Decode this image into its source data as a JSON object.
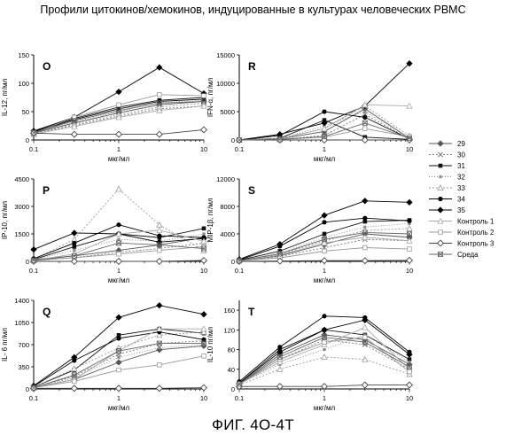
{
  "title": "Профили цитокинов/хемокинов, индуцированные в культурах человеческих PBMC",
  "caption": "ФИГ. 4О-4Т",
  "legend": {
    "placement": "right",
    "entries": [
      {
        "name": "29",
        "color": "#555555",
        "marker": "diamond-filled",
        "dash": ""
      },
      {
        "name": "30",
        "color": "#777777",
        "marker": "x",
        "dash": "2,2"
      },
      {
        "name": "31",
        "color": "#111111",
        "marker": "square-filled",
        "dash": ""
      },
      {
        "name": "32",
        "color": "#888888",
        "marker": "square-small",
        "dash": "1,2"
      },
      {
        "name": "33",
        "color": "#999999",
        "marker": "triangle-open",
        "dash": "2,2"
      },
      {
        "name": "34",
        "color": "#000000",
        "marker": "circle-filled",
        "dash": ""
      },
      {
        "name": "35",
        "color": "#000000",
        "marker": "diamond-filled",
        "dash": ""
      },
      {
        "name": "Контроль 1",
        "color": "#aaaaaa",
        "marker": "triangle-open",
        "dash": ""
      },
      {
        "name": "Контроль 2",
        "color": "#999999",
        "marker": "square-open",
        "dash": ""
      },
      {
        "name": "Контроль 3",
        "color": "#444444",
        "marker": "diamond-open",
        "dash": ""
      },
      {
        "name": "Среда",
        "color": "#666666",
        "marker": "x-box",
        "dash": ""
      }
    ]
  },
  "chart_data": [
    {
      "type": "line",
      "panel": "O",
      "ylabel": "IL-12, пг/мл",
      "xlabel": "мкг/мл",
      "x_scale": "log",
      "xlim": [
        0.1,
        10
      ],
      "x_ticks": [
        0.1,
        1,
        10
      ],
      "ylim": [
        0,
        150
      ],
      "y_ticks": [
        0,
        50,
        100,
        150
      ],
      "grid": false,
      "x": [
        0.1,
        0.3,
        1,
        3,
        10
      ],
      "series": [
        {
          "name": "29",
          "values": [
            12,
            30,
            48,
            62,
            68
          ]
        },
        {
          "name": "30",
          "values": [
            10,
            26,
            42,
            55,
            60
          ]
        },
        {
          "name": "31",
          "values": [
            15,
            38,
            58,
            70,
            75
          ]
        },
        {
          "name": "32",
          "values": [
            12,
            32,
            50,
            66,
            70
          ]
        },
        {
          "name": "33",
          "values": [
            11,
            28,
            45,
            58,
            65
          ]
        },
        {
          "name": "34",
          "values": [
            14,
            36,
            55,
            68,
            72
          ]
        },
        {
          "name": "35",
          "values": [
            16,
            40,
            85,
            128,
            82
          ]
        },
        {
          "name": "Контроль 1",
          "values": [
            10,
            24,
            40,
            52,
            60
          ]
        },
        {
          "name": "Контроль 2",
          "values": [
            12,
            40,
            62,
            80,
            78
          ]
        },
        {
          "name": "Контроль 3",
          "values": [
            12,
            10,
            10,
            10,
            18
          ]
        },
        {
          "name": "Среда",
          "values": [
            13,
            34,
            52,
            65,
            68
          ]
        }
      ]
    },
    {
      "type": "line",
      "panel": "R",
      "ylabel": "IFN-α, пг/мл",
      "xlabel": "мкг/мл",
      "x_scale": "log",
      "xlim": [
        0.1,
        10
      ],
      "x_ticks": [
        0.1,
        1,
        10
      ],
      "ylim": [
        0,
        15000
      ],
      "y_ticks": [
        0,
        5000,
        10000,
        15000
      ],
      "grid": false,
      "x": [
        0.1,
        0.3,
        1,
        3,
        10
      ],
      "series": [
        {
          "name": "29",
          "values": [
            0,
            200,
            1500,
            5500,
            300
          ]
        },
        {
          "name": "30",
          "values": [
            0,
            100,
            800,
            4500,
            200
          ]
        },
        {
          "name": "31",
          "values": [
            0,
            300,
            3500,
            500,
            100
          ]
        },
        {
          "name": "32",
          "values": [
            0,
            200,
            2500,
            5000,
            400
          ]
        },
        {
          "name": "33",
          "values": [
            0,
            300,
            2000,
            6000,
            700
          ]
        },
        {
          "name": "34",
          "values": [
            0,
            800,
            5000,
            4000,
            200
          ]
        },
        {
          "name": "35",
          "values": [
            0,
            1000,
            3000,
            6000,
            13500
          ]
        },
        {
          "name": "Контроль 1",
          "values": [
            0,
            200,
            2000,
            6200,
            6000
          ]
        },
        {
          "name": "Контроль 2",
          "values": [
            0,
            100,
            500,
            2000,
            600
          ]
        },
        {
          "name": "Контроль 3",
          "values": [
            0,
            0,
            0,
            0,
            0
          ]
        },
        {
          "name": "Среда",
          "values": [
            0,
            100,
            600,
            3000,
            300
          ]
        }
      ]
    },
    {
      "type": "line",
      "panel": "P",
      "ylabel": "IP-10, пг/мл",
      "xlabel": "мкг/мл",
      "x_scale": "log",
      "xlim": [
        0.1,
        10
      ],
      "x_ticks": [
        0.1,
        1,
        10
      ],
      "ylim": [
        0,
        4500
      ],
      "y_ticks": [
        0,
        1500,
        3000,
        4500
      ],
      "grid": false,
      "x": [
        0.1,
        0.3,
        1,
        3,
        10
      ],
      "series": [
        {
          "name": "29",
          "values": [
            100,
            300,
            600,
            900,
            1300
          ]
        },
        {
          "name": "30",
          "values": [
            50,
            200,
            500,
            700,
            1000
          ]
        },
        {
          "name": "31",
          "values": [
            100,
            800,
            1500,
            1300,
            1800
          ]
        },
        {
          "name": "32",
          "values": [
            100,
            600,
            1200,
            1100,
            1500
          ]
        },
        {
          "name": "33",
          "values": [
            100,
            1200,
            3950,
            2000,
            600
          ]
        },
        {
          "name": "34",
          "values": [
            150,
            1000,
            2000,
            1400,
            1300
          ]
        },
        {
          "name": "35",
          "values": [
            650,
            1550,
            1500,
            1050,
            1250
          ]
        },
        {
          "name": "Контроль 1",
          "values": [
            50,
            400,
            1500,
            1700,
            1100
          ]
        },
        {
          "name": "Контроль 2",
          "values": [
            50,
            200,
            400,
            600,
            800
          ]
        },
        {
          "name": "Контроль 3",
          "values": [
            0,
            0,
            0,
            0,
            50
          ]
        },
        {
          "name": "Среда",
          "values": [
            50,
            300,
            1000,
            900,
            700
          ]
        }
      ]
    },
    {
      "type": "line",
      "panel": "S",
      "ylabel": "MIP-1β, пг/мл",
      "xlabel": "мкг/мл",
      "x_scale": "log",
      "xlim": [
        0.1,
        10
      ],
      "x_ticks": [
        0.1,
        1,
        10
      ],
      "ylim": [
        0,
        12000
      ],
      "y_ticks": [
        0,
        4000,
        8000,
        12000
      ],
      "grid": false,
      "x": [
        0.1,
        0.3,
        1,
        3,
        10
      ],
      "series": [
        {
          "name": "29",
          "values": [
            100,
            800,
            2500,
            4000,
            3500
          ]
        },
        {
          "name": "30",
          "values": [
            100,
            700,
            2000,
            3200,
            3000
          ]
        },
        {
          "name": "31",
          "values": [
            150,
            1500,
            4000,
            5800,
            6000
          ]
        },
        {
          "name": "32",
          "values": [
            100,
            1200,
            3500,
            5000,
            5500
          ]
        },
        {
          "name": "33",
          "values": [
            100,
            1000,
            3000,
            4500,
            4800
          ]
        },
        {
          "name": "34",
          "values": [
            200,
            2200,
            5700,
            6300,
            5900
          ]
        },
        {
          "name": "35",
          "values": [
            300,
            2500,
            6700,
            8800,
            8600
          ]
        },
        {
          "name": "Контроль 1",
          "values": [
            100,
            900,
            2700,
            3500,
            3000
          ]
        },
        {
          "name": "Контроль 2",
          "values": [
            100,
            500,
            1500,
            2000,
            1800
          ]
        },
        {
          "name": "Контроль 3",
          "values": [
            0,
            50,
            100,
            100,
            150
          ]
        },
        {
          "name": "Среда",
          "values": [
            100,
            1100,
            3200,
            4200,
            4000
          ]
        }
      ]
    },
    {
      "type": "line",
      "panel": "Q",
      "ylabel": "IL- 6 пг/мл",
      "xlabel": "мкг/мл",
      "x_scale": "log",
      "xlim": [
        0.1,
        10
      ],
      "x_ticks": [
        0.1,
        1,
        10
      ],
      "ylim": [
        0,
        1400
      ],
      "y_ticks": [
        0,
        350,
        700,
        1050,
        1400
      ],
      "grid": false,
      "x": [
        0.1,
        0.3,
        1,
        3,
        10
      ],
      "series": [
        {
          "name": "29",
          "values": [
            20,
            150,
            420,
            620,
            680
          ]
        },
        {
          "name": "30",
          "values": [
            20,
            200,
            550,
            720,
            760
          ]
        },
        {
          "name": "31",
          "values": [
            30,
            300,
            850,
            950,
            880
          ]
        },
        {
          "name": "32",
          "values": [
            20,
            180,
            500,
            650,
            700
          ]
        },
        {
          "name": "33",
          "values": [
            30,
            320,
            650,
            850,
            900
          ]
        },
        {
          "name": "34",
          "values": [
            40,
            450,
            800,
            900,
            780
          ]
        },
        {
          "name": "35",
          "values": [
            50,
            500,
            1130,
            1320,
            1180
          ]
        },
        {
          "name": "Контроль 1",
          "values": [
            20,
            150,
            600,
            950,
            950
          ]
        },
        {
          "name": "Контроль 2",
          "values": [
            20,
            120,
            300,
            380,
            520
          ]
        },
        {
          "name": "Контроль 3",
          "values": [
            10,
            10,
            10,
            10,
            20
          ]
        },
        {
          "name": "Среда",
          "values": [
            20,
            220,
            600,
            720,
            720
          ]
        }
      ]
    },
    {
      "type": "line",
      "panel": "T",
      "ylabel": "IL-10 пг/мл",
      "xlabel": "мкг/мл",
      "x_scale": "log",
      "xlim": [
        0.1,
        10
      ],
      "x_ticks": [
        0.1,
        1,
        10
      ],
      "ylim": [
        0,
        180
      ],
      "y_ticks": [
        0,
        40,
        80,
        120,
        160
      ],
      "grid": false,
      "x": [
        0.1,
        0.3,
        1,
        3,
        10
      ],
      "series": [
        {
          "name": "29",
          "values": [
            10,
            70,
            110,
            100,
            50
          ]
        },
        {
          "name": "30",
          "values": [
            10,
            60,
            100,
            90,
            40
          ]
        },
        {
          "name": "31",
          "values": [
            12,
            80,
            120,
            110,
            60
          ]
        },
        {
          "name": "32",
          "values": [
            10,
            50,
            80,
            110,
            55
          ]
        },
        {
          "name": "33",
          "values": [
            8,
            40,
            65,
            60,
            30
          ]
        },
        {
          "name": "34",
          "values": [
            15,
            85,
            148,
            145,
            75
          ]
        },
        {
          "name": "35",
          "values": [
            12,
            75,
            120,
            140,
            70
          ]
        },
        {
          "name": "Контроль 1",
          "values": [
            10,
            55,
            90,
            125,
            40
          ]
        },
        {
          "name": "Контроль 2",
          "values": [
            10,
            60,
            95,
            105,
            35
          ]
        },
        {
          "name": "Контроль 3",
          "values": [
            5,
            5,
            5,
            8,
            8
          ]
        },
        {
          "name": "Среда",
          "values": [
            10,
            65,
            105,
            95,
            45
          ]
        }
      ]
    }
  ]
}
